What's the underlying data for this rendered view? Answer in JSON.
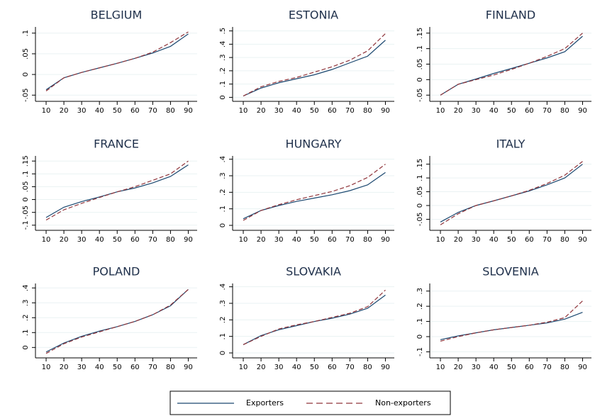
{
  "legend": [
    {
      "name": "Exporters"
    },
    {
      "name": "Non-exporters"
    }
  ],
  "chart_data": [
    {
      "type": "line",
      "title": "BELGIUM",
      "x": [
        10,
        20,
        30,
        40,
        50,
        60,
        70,
        80,
        90
      ],
      "xlim": [
        4,
        95
      ],
      "xticks": [
        10,
        20,
        30,
        40,
        50,
        60,
        70,
        80,
        90
      ],
      "ylim": [
        -0.065,
        0.115
      ],
      "yticks": [
        {
          "value": -0.05,
          "label": "-.05"
        },
        0,
        {
          "value": 0.05,
          "label": ".05"
        },
        {
          "value": 0.1,
          "label": ".1"
        }
      ],
      "grid": true,
      "series": [
        {
          "color": "#1a476f",
          "dashed": false,
          "values": [
            -0.037,
            -0.008,
            0.005,
            0.016,
            0.027,
            0.039,
            0.052,
            0.068,
            0.098
          ]
        },
        {
          "color": "#90353b",
          "dashed": true,
          "values": [
            -0.04,
            -0.008,
            0.005,
            0.016,
            0.027,
            0.039,
            0.054,
            0.077,
            0.103
          ]
        }
      ]
    },
    {
      "type": "line",
      "title": "ESTONIA",
      "x": [
        10,
        20,
        30,
        40,
        50,
        60,
        70,
        80,
        90
      ],
      "xlim": [
        4,
        95
      ],
      "xticks": [
        10,
        20,
        30,
        40,
        50,
        60,
        70,
        80,
        90
      ],
      "ylim": [
        -0.03,
        0.53
      ],
      "yticks": [
        0,
        {
          "value": 0.1,
          "label": ".1"
        },
        {
          "value": 0.2,
          "label": ".2"
        },
        {
          "value": 0.3,
          "label": ".3"
        },
        {
          "value": 0.4,
          "label": ".4"
        },
        {
          "value": 0.5,
          "label": ".5"
        }
      ],
      "grid": true,
      "series": [
        {
          "color": "#1a476f",
          "dashed": false,
          "values": [
            0.01,
            0.07,
            0.11,
            0.14,
            0.17,
            0.21,
            0.26,
            0.31,
            0.43
          ]
        },
        {
          "color": "#90353b",
          "dashed": true,
          "values": [
            0.01,
            0.08,
            0.12,
            0.15,
            0.19,
            0.23,
            0.28,
            0.35,
            0.48
          ]
        }
      ]
    },
    {
      "type": "line",
      "title": "FINLAND",
      "x": [
        10,
        20,
        30,
        40,
        50,
        60,
        70,
        80,
        90
      ],
      "xlim": [
        4,
        95
      ],
      "xticks": [
        10,
        20,
        30,
        40,
        50,
        60,
        70,
        80,
        90
      ],
      "ylim": [
        -0.07,
        0.17
      ],
      "yticks": [
        {
          "value": -0.05,
          "label": "-.05"
        },
        0,
        {
          "value": 0.05,
          "label": ".05"
        },
        {
          "value": 0.1,
          "label": ".1"
        },
        {
          "value": 0.15,
          "label": ".15"
        }
      ],
      "grid": true,
      "series": [
        {
          "color": "#1a476f",
          "dashed": false,
          "values": [
            -0.05,
            -0.015,
            0.002,
            0.02,
            0.036,
            0.053,
            0.07,
            0.09,
            0.14
          ]
        },
        {
          "color": "#90353b",
          "dashed": true,
          "values": [
            -0.05,
            -0.015,
            0.0,
            0.015,
            0.033,
            0.053,
            0.075,
            0.1,
            0.15
          ]
        }
      ]
    },
    {
      "type": "line",
      "title": "FRANCE",
      "x": [
        10,
        20,
        30,
        40,
        50,
        60,
        70,
        80,
        90
      ],
      "xlim": [
        4,
        95
      ],
      "xticks": [
        10,
        20,
        30,
        40,
        50,
        60,
        70,
        80,
        90
      ],
      "ylim": [
        -0.12,
        0.17
      ],
      "yticks": [
        {
          "value": -0.1,
          "label": "-.1"
        },
        {
          "value": -0.05,
          "label": "-.05"
        },
        0,
        {
          "value": 0.05,
          "label": ".05"
        },
        {
          "value": 0.1,
          "label": ".1"
        },
        {
          "value": 0.15,
          "label": ".15"
        }
      ],
      "grid": true,
      "series": [
        {
          "color": "#1a476f",
          "dashed": false,
          "values": [
            -0.07,
            -0.03,
            -0.008,
            0.01,
            0.03,
            0.045,
            0.065,
            0.09,
            0.135
          ]
        },
        {
          "color": "#90353b",
          "dashed": true,
          "values": [
            -0.08,
            -0.04,
            -0.015,
            0.008,
            0.03,
            0.05,
            0.075,
            0.1,
            0.15
          ]
        }
      ]
    },
    {
      "type": "line",
      "title": "HUNGARY",
      "x": [
        10,
        20,
        30,
        40,
        50,
        60,
        70,
        80,
        90
      ],
      "xlim": [
        4,
        95
      ],
      "xticks": [
        10,
        20,
        30,
        40,
        50,
        60,
        70,
        80,
        90
      ],
      "ylim": [
        -0.03,
        0.42
      ],
      "yticks": [
        0,
        {
          "value": 0.1,
          "label": ".1"
        },
        {
          "value": 0.2,
          "label": ".2"
        },
        {
          "value": 0.3,
          "label": ".3"
        },
        {
          "value": 0.4,
          "label": ".4"
        }
      ],
      "grid": true,
      "series": [
        {
          "color": "#1a476f",
          "dashed": false,
          "values": [
            0.04,
            0.09,
            0.12,
            0.145,
            0.165,
            0.185,
            0.21,
            0.245,
            0.32
          ]
        },
        {
          "color": "#90353b",
          "dashed": true,
          "values": [
            0.03,
            0.09,
            0.125,
            0.155,
            0.18,
            0.205,
            0.24,
            0.29,
            0.37
          ]
        }
      ]
    },
    {
      "type": "line",
      "title": "ITALY",
      "x": [
        10,
        20,
        30,
        40,
        50,
        60,
        70,
        80,
        90
      ],
      "xlim": [
        4,
        95
      ],
      "xticks": [
        10,
        20,
        30,
        40,
        50,
        60,
        70,
        80,
        90
      ],
      "ylim": [
        -0.09,
        0.18
      ],
      "yticks": [
        {
          "value": -0.05,
          "label": "-.05"
        },
        0,
        {
          "value": 0.05,
          "label": ".05"
        },
        {
          "value": 0.1,
          "label": ".1"
        },
        {
          "value": 0.15,
          "label": ".15"
        }
      ],
      "grid": true,
      "series": [
        {
          "color": "#1a476f",
          "dashed": false,
          "values": [
            -0.06,
            -0.025,
            0.0,
            0.017,
            0.035,
            0.053,
            0.075,
            0.1,
            0.15
          ]
        },
        {
          "color": "#90353b",
          "dashed": true,
          "values": [
            -0.07,
            -0.03,
            0.0,
            0.017,
            0.035,
            0.055,
            0.08,
            0.11,
            0.16
          ]
        }
      ]
    },
    {
      "type": "line",
      "title": "POLAND",
      "x": [
        10,
        20,
        30,
        40,
        50,
        60,
        70,
        80,
        90
      ],
      "xlim": [
        4,
        95
      ],
      "xticks": [
        10,
        20,
        30,
        40,
        50,
        60,
        70,
        80,
        90
      ],
      "ylim": [
        -0.07,
        0.43
      ],
      "yticks": [
        0,
        {
          "value": 0.1,
          "label": ".1"
        },
        {
          "value": 0.2,
          "label": ".2"
        },
        {
          "value": 0.3,
          "label": ".3"
        },
        {
          "value": 0.4,
          "label": ".4"
        }
      ],
      "grid": true,
      "series": [
        {
          "color": "#1a476f",
          "dashed": false,
          "values": [
            -0.03,
            0.03,
            0.075,
            0.11,
            0.14,
            0.175,
            0.22,
            0.28,
            0.39
          ]
        },
        {
          "color": "#90353b",
          "dashed": true,
          "values": [
            -0.04,
            0.025,
            0.07,
            0.105,
            0.14,
            0.175,
            0.22,
            0.285,
            0.39
          ]
        }
      ]
    },
    {
      "type": "line",
      "title": "SLOVAKIA",
      "x": [
        10,
        20,
        30,
        40,
        50,
        60,
        70,
        80,
        90
      ],
      "xlim": [
        4,
        95
      ],
      "xticks": [
        10,
        20,
        30,
        40,
        50,
        60,
        70,
        80,
        90
      ],
      "ylim": [
        -0.03,
        0.42
      ],
      "yticks": [
        0,
        {
          "value": 0.1,
          "label": ".1"
        },
        {
          "value": 0.2,
          "label": ".2"
        },
        {
          "value": 0.3,
          "label": ".3"
        },
        {
          "value": 0.4,
          "label": ".4"
        }
      ],
      "grid": true,
      "series": [
        {
          "color": "#1a476f",
          "dashed": false,
          "values": [
            0.05,
            0.105,
            0.14,
            0.165,
            0.19,
            0.21,
            0.235,
            0.27,
            0.35
          ]
        },
        {
          "color": "#90353b",
          "dashed": true,
          "values": [
            0.05,
            0.1,
            0.145,
            0.17,
            0.19,
            0.215,
            0.24,
            0.28,
            0.38
          ]
        }
      ]
    },
    {
      "type": "line",
      "title": "SLOVENIA",
      "x": [
        10,
        20,
        30,
        40,
        50,
        60,
        70,
        80,
        90
      ],
      "xlim": [
        4,
        95
      ],
      "xticks": [
        10,
        20,
        30,
        40,
        50,
        60,
        70,
        80,
        90
      ],
      "ylim": [
        -0.14,
        0.35
      ],
      "yticks": [
        {
          "value": -0.1,
          "label": "-.1"
        },
        0,
        {
          "value": 0.1,
          "label": ".1"
        },
        {
          "value": 0.2,
          "label": ".2"
        },
        {
          "value": 0.3,
          "label": ".3"
        }
      ],
      "grid": true,
      "series": [
        {
          "color": "#1a476f",
          "dashed": false,
          "values": [
            -0.02,
            0.005,
            0.025,
            0.045,
            0.06,
            0.075,
            0.09,
            0.115,
            0.16
          ]
        },
        {
          "color": "#90353b",
          "dashed": true,
          "values": [
            -0.03,
            0.0,
            0.025,
            0.045,
            0.06,
            0.075,
            0.095,
            0.125,
            0.235
          ]
        }
      ]
    }
  ]
}
